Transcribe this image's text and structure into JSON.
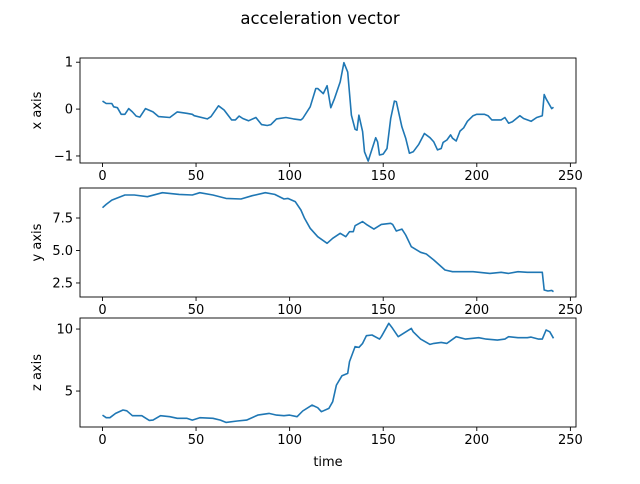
{
  "chart_data": {
    "type": "line",
    "title": "acceleration vector",
    "line_color": "#1f77b4",
    "grid": false,
    "subplots": [
      {
        "ylabel": "x axis",
        "xlabel": "",
        "xlim": [
          -12,
          253
        ],
        "ylim": [
          -1.15,
          1.09
        ],
        "xticks": [
          "0",
          "50",
          "100",
          "150",
          "200",
          "250"
        ],
        "yticks": [
          "−1",
          "0",
          "1"
        ],
        "ytick_values": [
          -1,
          0,
          1
        ],
        "x": [
          0,
          2,
          5,
          6,
          8,
          10,
          12,
          14,
          16,
          18,
          20,
          23,
          27,
          30,
          36,
          40,
          45,
          48,
          49,
          56,
          58,
          62,
          65,
          69,
          71,
          73,
          75,
          78,
          82,
          85,
          88,
          90,
          93,
          98,
          102,
          106,
          107,
          111,
          114,
          115,
          118,
          120,
          122,
          124,
          127,
          129,
          131,
          133,
          135,
          136,
          137,
          139,
          140,
          142,
          143,
          146,
          147,
          148,
          150,
          152,
          154,
          156,
          157,
          160,
          162,
          164,
          166,
          169,
          172,
          175,
          177,
          179,
          181,
          182,
          184,
          186,
          187,
          189,
          191,
          193,
          195,
          198,
          200,
          204,
          206,
          208,
          213,
          215,
          217,
          219,
          223,
          225,
          229,
          232,
          235,
          236,
          237,
          240,
          241
        ],
        "y": [
          0.17,
          0.12,
          0.12,
          0.05,
          0.03,
          -0.11,
          -0.11,
          0.01,
          -0.06,
          -0.15,
          -0.17,
          0.01,
          -0.06,
          -0.16,
          -0.18,
          -0.06,
          -0.09,
          -0.11,
          -0.14,
          -0.21,
          -0.16,
          0.07,
          -0.02,
          -0.23,
          -0.23,
          -0.15,
          -0.2,
          -0.25,
          -0.18,
          -0.33,
          -0.35,
          -0.33,
          -0.21,
          -0.18,
          -0.21,
          -0.23,
          -0.2,
          0.05,
          0.44,
          0.44,
          0.33,
          0.5,
          0.03,
          0.23,
          0.58,
          0.99,
          0.79,
          -0.13,
          -0.43,
          -0.45,
          -0.13,
          -0.48,
          -0.91,
          -1.11,
          -0.98,
          -0.61,
          -0.7,
          -0.98,
          -0.96,
          -0.84,
          -0.2,
          0.17,
          0.16,
          -0.38,
          -0.62,
          -0.94,
          -0.91,
          -0.75,
          -0.52,
          -0.61,
          -0.7,
          -0.87,
          -0.84,
          -0.71,
          -0.66,
          -0.55,
          -0.62,
          -0.68,
          -0.47,
          -0.4,
          -0.26,
          -0.14,
          -0.11,
          -0.11,
          -0.14,
          -0.23,
          -0.23,
          -0.18,
          -0.3,
          -0.27,
          -0.14,
          -0.2,
          -0.26,
          -0.18,
          -0.14,
          0.31,
          0.22,
          0.01,
          0.04
        ]
      },
      {
        "ylabel": "y axis",
        "xlabel": "",
        "xlim": [
          -12,
          253
        ],
        "ylim": [
          1.42,
          9.81
        ],
        "xticks": [
          "0",
          "50",
          "100",
          "150",
          "200",
          "250"
        ],
        "yticks": [
          "2.5",
          "5.0",
          "7.5"
        ],
        "ytick_values": [
          2.5,
          5.0,
          7.5
        ],
        "x": [
          0,
          2,
          5,
          12,
          17,
          24,
          32,
          41,
          48,
          52,
          59,
          66,
          74,
          80,
          87,
          92,
          97,
          99,
          103,
          106,
          108,
          111,
          115,
          120,
          123,
          127,
          130,
          132,
          134,
          135,
          139,
          141,
          145,
          149,
          154,
          155,
          157,
          160,
          162,
          165,
          170,
          173,
          177,
          180,
          183,
          187,
          191,
          198,
          207,
          213,
          217,
          222,
          227,
          235,
          236,
          238,
          240,
          241
        ],
        "y": [
          8.29,
          8.55,
          8.88,
          9.27,
          9.27,
          9.14,
          9.45,
          9.32,
          9.27,
          9.45,
          9.27,
          9.01,
          8.96,
          9.22,
          9.45,
          9.32,
          8.96,
          9.01,
          8.76,
          8.12,
          7.47,
          6.71,
          6.06,
          5.55,
          5.94,
          6.32,
          6.06,
          6.45,
          6.45,
          6.91,
          7.22,
          7.01,
          6.65,
          7.01,
          7.09,
          7.01,
          6.5,
          6.65,
          6.19,
          5.29,
          4.86,
          4.73,
          4.27,
          3.88,
          3.5,
          3.37,
          3.37,
          3.37,
          3.24,
          3.32,
          3.24,
          3.37,
          3.32,
          3.32,
          1.96,
          1.88,
          1.93,
          1.83
        ]
      },
      {
        "ylabel": "z axis",
        "xlabel": "time",
        "xlim": [
          -12,
          253
        ],
        "ylim": [
          2.1,
          10.89
        ],
        "xticks": [
          "0",
          "50",
          "100",
          "150",
          "200",
          "250"
        ],
        "yticks": [
          "5",
          "10"
        ],
        "ytick_values": [
          5,
          10
        ],
        "x": [
          0,
          2,
          4,
          7,
          11,
          13,
          16,
          21,
          25,
          27,
          31,
          36,
          40,
          45,
          48,
          52,
          59,
          63,
          66,
          72,
          77,
          83,
          89,
          93,
          97,
          100,
          104,
          107,
          112,
          115,
          117,
          121,
          123,
          125,
          128,
          131,
          132,
          135,
          137,
          139,
          141,
          144,
          148,
          149,
          153,
          155,
          158,
          165,
          166,
          170,
          175,
          177,
          181,
          184,
          189,
          194,
          201,
          205,
          211,
          215,
          217,
          222,
          227,
          229,
          233,
          235,
          237,
          239,
          241
        ],
        "y": [
          3.06,
          2.85,
          2.85,
          3.2,
          3.47,
          3.41,
          3.01,
          3.01,
          2.63,
          2.66,
          3.01,
          2.93,
          2.8,
          2.8,
          2.66,
          2.85,
          2.8,
          2.66,
          2.47,
          2.58,
          2.66,
          3.06,
          3.2,
          3.06,
          3.01,
          3.06,
          2.93,
          3.39,
          3.87,
          3.66,
          3.33,
          3.6,
          4.14,
          5.48,
          6.24,
          6.42,
          7.37,
          8.58,
          8.52,
          8.84,
          9.46,
          9.52,
          9.19,
          9.38,
          10.46,
          10.05,
          9.38,
          10.05,
          9.78,
          9.19,
          8.76,
          8.84,
          8.92,
          8.84,
          9.38,
          9.19,
          9.3,
          9.19,
          9.11,
          9.19,
          9.38,
          9.3,
          9.3,
          9.35,
          9.19,
          9.19,
          9.92,
          9.78,
          9.25
        ]
      }
    ]
  }
}
